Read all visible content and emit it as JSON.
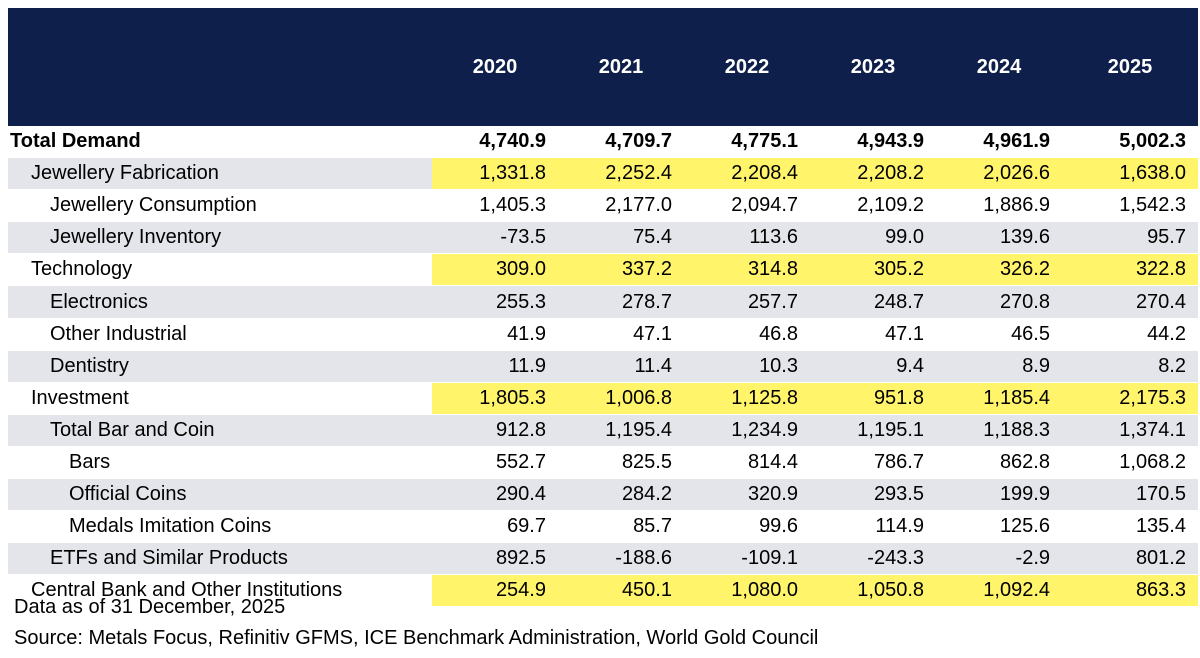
{
  "table": {
    "columns": [
      "2020",
      "2021",
      "2022",
      "2023",
      "2024",
      "2025"
    ],
    "rows": [
      {
        "label": "Total Demand",
        "values": [
          "4,740.9",
          "4,709.7",
          "4,775.1",
          "4,943.9",
          "4,961.9",
          "5,002.3"
        ]
      },
      {
        "label": "Jewellery Fabrication",
        "values": [
          "1,331.8",
          "2,252.4",
          "2,208.4",
          "2,208.2",
          "2,026.6",
          "1,638.0"
        ]
      },
      {
        "label": "Jewellery Consumption",
        "values": [
          "1,405.3",
          "2,177.0",
          "2,094.7",
          "2,109.2",
          "1,886.9",
          "1,542.3"
        ]
      },
      {
        "label": "Jewellery Inventory",
        "values": [
          "-73.5",
          "75.4",
          "113.6",
          "99.0",
          "139.6",
          "95.7"
        ]
      },
      {
        "label": "Technology",
        "values": [
          "309.0",
          "337.2",
          "314.8",
          "305.2",
          "326.2",
          "322.8"
        ]
      },
      {
        "label": "Electronics",
        "values": [
          "255.3",
          "278.7",
          "257.7",
          "248.7",
          "270.8",
          "270.4"
        ]
      },
      {
        "label": "Other Industrial",
        "values": [
          "41.9",
          "47.1",
          "46.8",
          "47.1",
          "46.5",
          "44.2"
        ]
      },
      {
        "label": "Dentistry",
        "values": [
          "11.9",
          "11.4",
          "10.3",
          "9.4",
          "8.9",
          "8.2"
        ]
      },
      {
        "label": "Investment",
        "values": [
          "1,805.3",
          "1,006.8",
          "1,125.8",
          "951.8",
          "1,185.4",
          "2,175.3"
        ]
      },
      {
        "label": "Total Bar and Coin",
        "values": [
          "912.8",
          "1,195.4",
          "1,234.9",
          "1,195.1",
          "1,188.3",
          "1,374.1"
        ]
      },
      {
        "label": "Bars",
        "values": [
          "552.7",
          "825.5",
          "814.4",
          "786.7",
          "862.8",
          "1,068.2"
        ]
      },
      {
        "label": "Official Coins",
        "values": [
          "290.4",
          "284.2",
          "320.9",
          "293.5",
          "199.9",
          "170.5"
        ]
      },
      {
        "label": "Medals Imitation Coins",
        "values": [
          "69.7",
          "85.7",
          "99.6",
          "114.9",
          "125.6",
          "135.4"
        ]
      },
      {
        "label": "ETFs and Similar Products",
        "values": [
          "892.5",
          "-188.6",
          "-109.1",
          "-243.3",
          "-2.9",
          "801.2"
        ]
      },
      {
        "label": "Central Bank and Other Institutions",
        "values": [
          "254.9",
          "450.1",
          "1,080.0",
          "1,050.8",
          "1,092.4",
          "863.3"
        ]
      }
    ]
  },
  "footnotes": {
    "date": "Data as of 31 December, 2025",
    "source": "Source: Metals Focus, Refinitiv GFMS, ICE Benchmark Administration, World Gold Council"
  },
  "colors": {
    "header_bg": "#0d1f4a",
    "highlight": "#fff46a",
    "row_shade": "#e3e5ea"
  }
}
